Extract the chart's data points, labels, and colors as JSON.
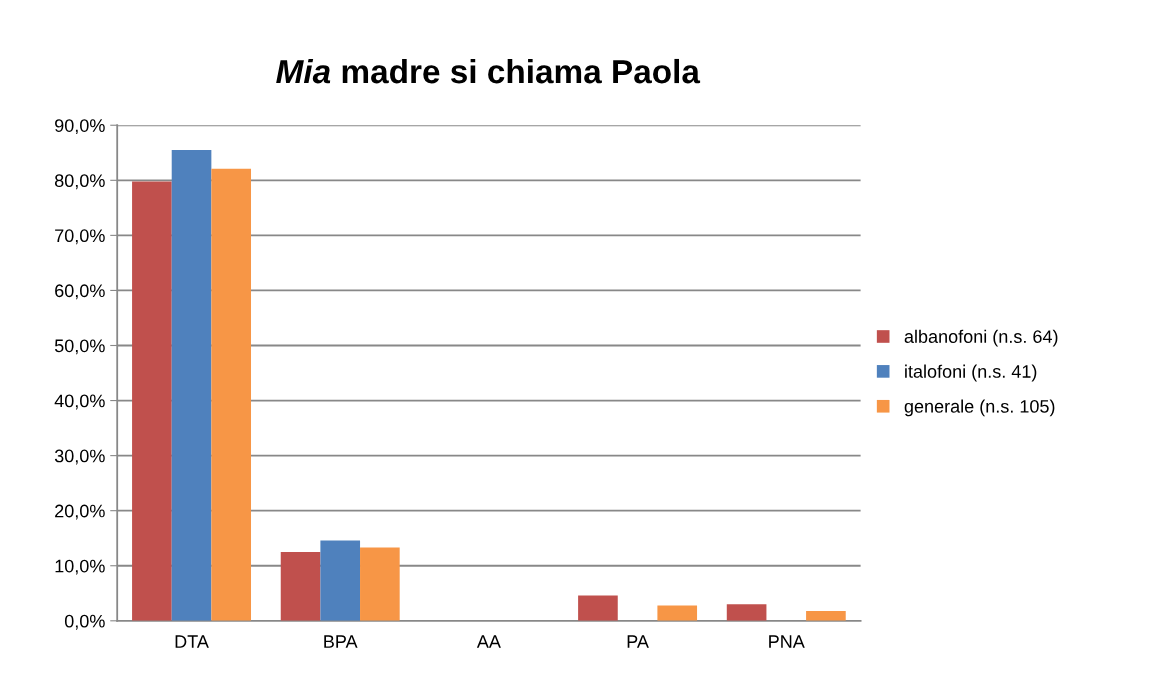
{
  "chart_data": {
    "type": "bar",
    "title": "Mia madre si chiama Paola",
    "categories": [
      "DTA",
      "BPA",
      "AA",
      "PA",
      "PNA"
    ],
    "series": [
      {
        "name": "albanofoni (n.s. 64)",
        "color": "#c0504d",
        "values": [
          79.8,
          12.5,
          0,
          4.6,
          3.0
        ]
      },
      {
        "name": "italofoni (n.s. 41)",
        "color": "#4f81bd",
        "values": [
          85.5,
          14.6,
          0,
          0,
          0
        ]
      },
      {
        "name": "generale (n.s. 105)",
        "color": "#f79646",
        "values": [
          82.1,
          13.3,
          0,
          2.8,
          1.8
        ]
      }
    ],
    "ylim": [
      0,
      90
    ],
    "yticks": [
      {
        "value": 0,
        "label": "0,0%"
      },
      {
        "value": 10,
        "label": "10,0%"
      },
      {
        "value": 20,
        "label": "20,0%"
      },
      {
        "value": 30,
        "label": "30,0%"
      },
      {
        "value": 40,
        "label": "40,0%"
      },
      {
        "value": 50,
        "label": "50,0%"
      },
      {
        "value": 60,
        "label": "60,0%"
      },
      {
        "value": 70,
        "label": "70,0%"
      },
      {
        "value": 80,
        "label": "80,0%"
      },
      {
        "value": 90,
        "label": "90,0%"
      }
    ],
    "grid": "y",
    "legend": "right"
  }
}
